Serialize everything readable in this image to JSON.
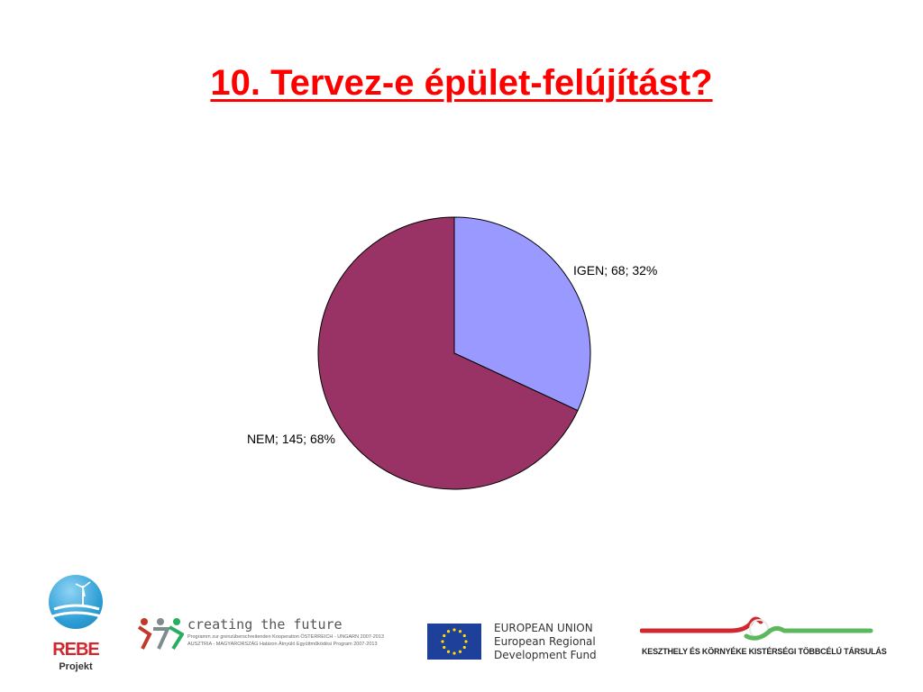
{
  "slide": {
    "title": "10. Tervez-e épület-felújítást?"
  },
  "chart_data": {
    "type": "pie",
    "title": "",
    "slices": [
      {
        "name": "IGEN",
        "value": 68,
        "percent": 32,
        "label": "IGEN; 68; 32%",
        "color": "#9999ff"
      },
      {
        "name": "NEM",
        "value": 145,
        "percent": 68,
        "label": "NEM; 145; 68%",
        "color": "#993366"
      }
    ],
    "start_angle": "12 o'clock",
    "direction": "clockwise",
    "legend": "none"
  },
  "logos": {
    "rebe": {
      "name": "REBE",
      "sub": "Projekt"
    },
    "ctf": {
      "title": "creating the future",
      "line1": "Programm zur grenzüberschreitenden Kooperation ÖSTERREICH - UNGARN 2007-2013",
      "line2": "AUSZTRIA - MAGYARORSZÁG Határon Átnyúló Együttműködési Program 2007-2013"
    },
    "eu": {
      "line1": "EUROPEAN UNION",
      "line2": "European Regional",
      "line3": "Development Fund"
    },
    "ktt": {
      "org": "KESZTHELY ÉS KÖRNYÉKE KISTÉRSÉGI TÖBBCÉLÚ TÁRSULÁS"
    }
  },
  "colors": {
    "title": "#ff0000",
    "eu_blue": "#1e3f9a",
    "eu_star": "#ffdd00"
  }
}
